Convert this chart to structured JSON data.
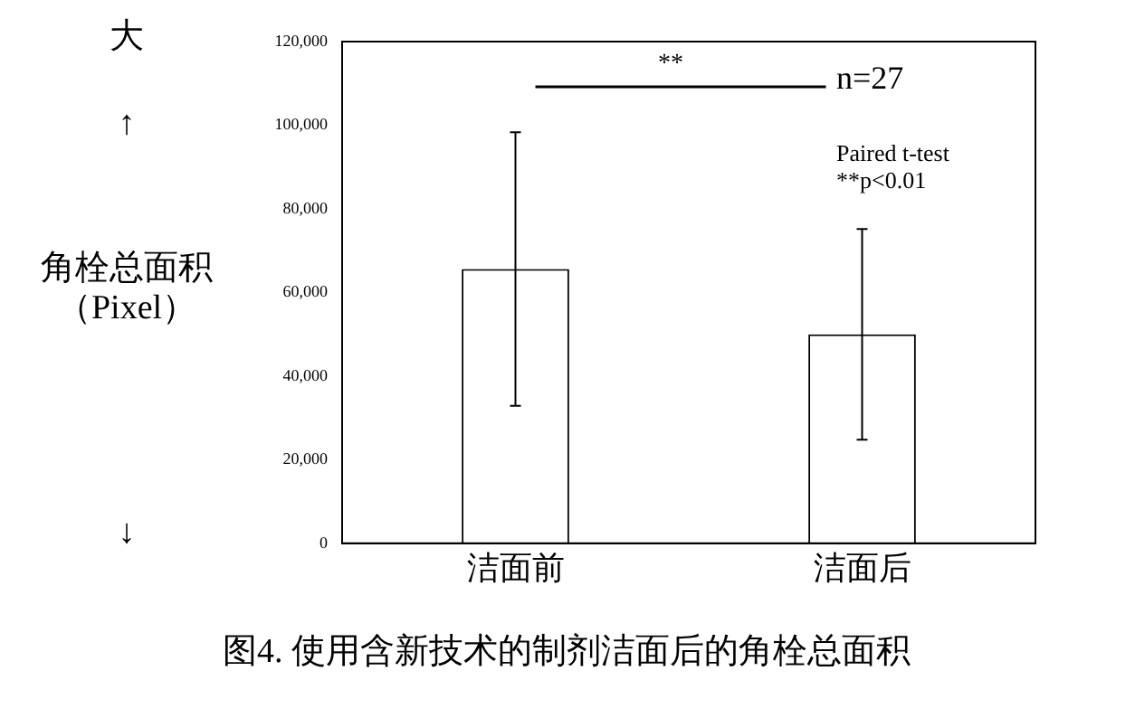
{
  "chart_data": {
    "type": "bar",
    "title": "图4. 使用含新技术的制剂洁面后的角栓总面积",
    "ylabel": "角栓总面积（Pixel）",
    "categories": [
      "洁面前",
      "洁面后"
    ],
    "values": [
      65600,
      50000
    ],
    "errors": [
      32700,
      25200
    ],
    "color": "#ffffff",
    "ylim": [
      0,
      120000
    ],
    "yticks": [
      {
        "value": 0,
        "label": "0"
      },
      {
        "value": 20000,
        "label": "20,000"
      },
      {
        "value": 40000,
        "label": "40,000"
      },
      {
        "value": 60000,
        "label": "60,000"
      },
      {
        "value": 80000,
        "label": "80,000"
      },
      {
        "value": 100000,
        "label": "100,000"
      },
      {
        "value": 120000,
        "label": "120,000"
      }
    ],
    "grid": false,
    "legend": false,
    "annotations": [
      "大",
      "↑",
      "↓",
      "**",
      "n=27",
      "Paired t-test\n**p<0.01"
    ]
  }
}
